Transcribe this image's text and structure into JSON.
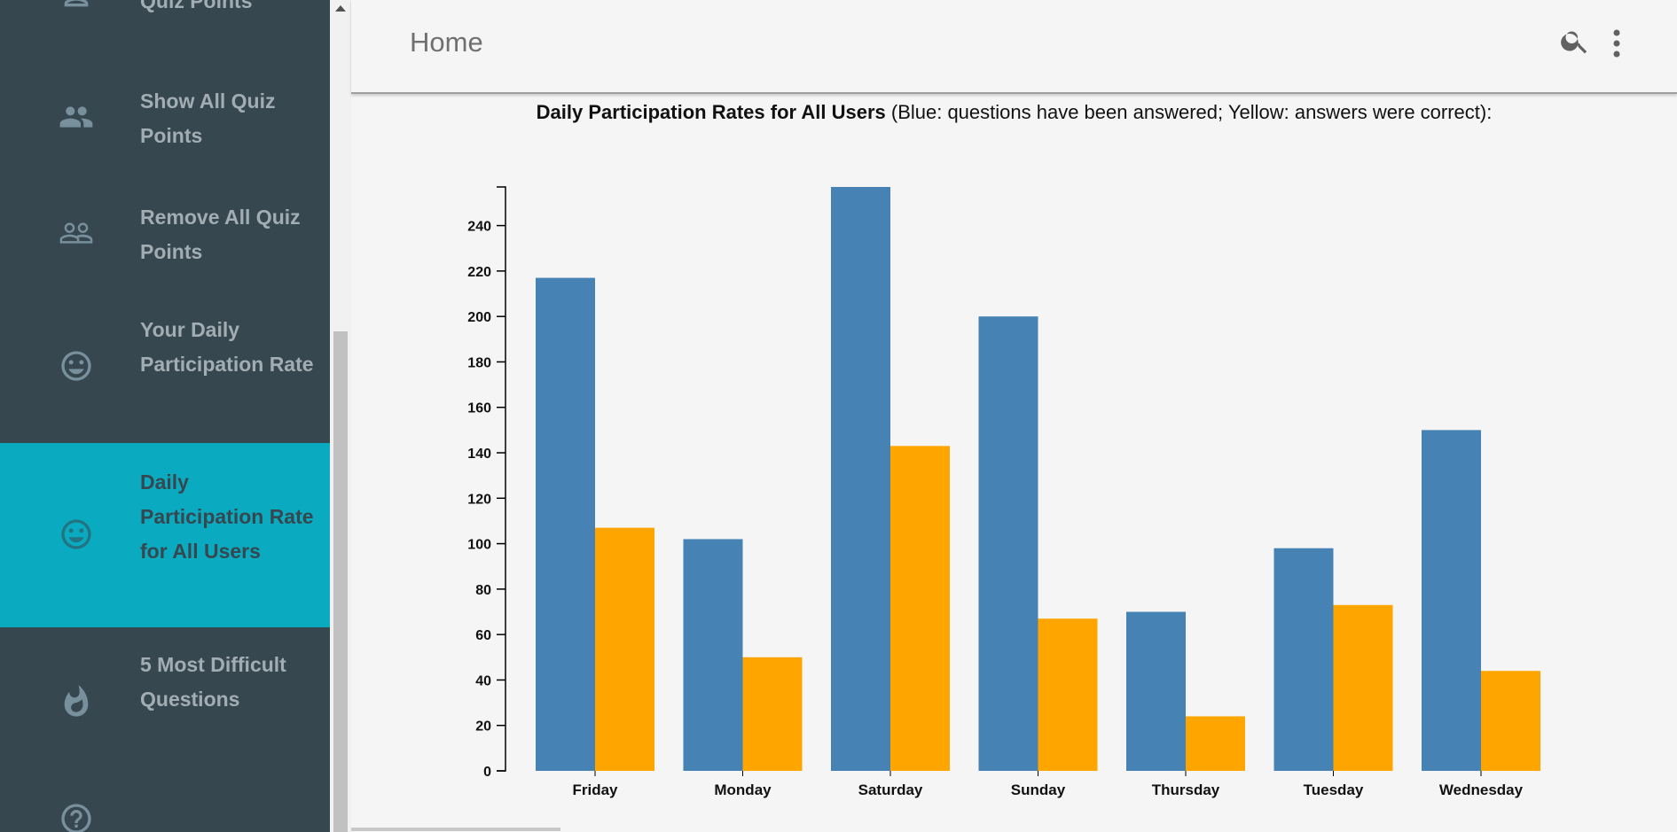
{
  "sidebar": {
    "items": [
      {
        "label": "Quiz Points",
        "icon": "person-icon",
        "active": false
      },
      {
        "label": "Show All Quiz Points",
        "icon": "people-icon",
        "active": false
      },
      {
        "label": "Remove All Quiz Points",
        "icon": "people-outline-icon",
        "active": false
      },
      {
        "label": "Your Daily Participation Rate",
        "icon": "smiley-icon",
        "active": false
      },
      {
        "label": "Daily Participation Rate for All Users",
        "icon": "smiley-icon",
        "active": true
      },
      {
        "label": "5 Most Difficult Questions",
        "icon": "flame-icon",
        "active": false
      },
      {
        "label": "",
        "icon": "help-icon",
        "active": false
      }
    ]
  },
  "appbar": {
    "title": "Home",
    "search_icon": "search-icon",
    "menu_icon": "more-vert-icon"
  },
  "chart_heading": {
    "bold": "Daily Participation Rates for All Users",
    "rest": " (Blue: questions have been answered; Yellow: answers were correct):"
  },
  "colors": {
    "sidebar_bg": "#37474f",
    "active_bg": "#0aabc1",
    "answered": "#4682b4",
    "correct": "#ffa500"
  },
  "chart_data": {
    "type": "bar",
    "title": "",
    "xlabel": "",
    "ylabel": "",
    "categories": [
      "Friday",
      "Monday",
      "Saturday",
      "Sunday",
      "Thursday",
      "Tuesday",
      "Wednesday"
    ],
    "series": [
      {
        "values": [
          217,
          102,
          257,
          200,
          70,
          98,
          150
        ],
        "color": "#4682b4"
      },
      {
        "values": [
          107,
          50,
          143,
          67,
          24,
          73,
          44
        ],
        "color": "#ffa500"
      }
    ],
    "yticks": [
      0,
      20,
      40,
      60,
      80,
      100,
      120,
      140,
      160,
      180,
      200,
      220,
      240
    ],
    "ylim": [
      0,
      257
    ],
    "grid": false,
    "legend": "none"
  }
}
